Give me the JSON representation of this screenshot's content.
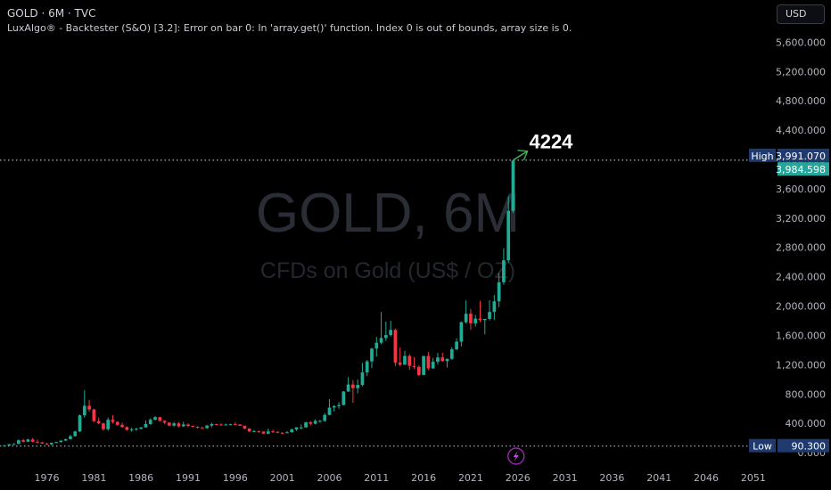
{
  "header": {
    "title": "GOLD · 6M · TVC",
    "error": "LuxAlgo® - Backtester (S&O) [3.2]: Error on bar 0: In 'array.get()' function. Index 0 is out of bounds, array size is 0.",
    "currency": "USD"
  },
  "watermark": {
    "symbol": "GOLD, 6M",
    "description": "CFDs on Gold (US$ / OZ)"
  },
  "annotation": {
    "text": "4224",
    "target_value": 4224
  },
  "price_labels": {
    "high_label": "High",
    "high_value": "3,991.070",
    "last_value": "3,984.598",
    "low_label": "Low",
    "low_value": "90.300"
  },
  "colors": {
    "up": "#22ab94",
    "down": "#f23645",
    "annotation": "#3fb950",
    "grid_dots": "#b2b5be",
    "label_blue": "#1e3a6e",
    "label_green": "#26a69a"
  },
  "events_icon": "lightning-icon",
  "chart_data": {
    "type": "candlestick",
    "title": "GOLD · 6M · TVC",
    "y_axis": {
      "ticks": [
        0,
        400,
        800,
        1200,
        1600,
        2000,
        2400,
        2800,
        3200,
        3600,
        4000,
        4400,
        4800,
        5200,
        5600
      ],
      "tick_labels": [
        "0.000",
        "400.000",
        "800.000",
        "1,200.000",
        "1,600.000",
        "2,000.000",
        "2,400.000",
        "2,800.000",
        "3,200.000",
        "3,600.000",
        "4,000.000",
        "4,400.000",
        "4,800.000",
        "5,200.000",
        "5,600.000"
      ],
      "range": [
        -120,
        5750
      ]
    },
    "x_axis": {
      "ticks": [
        1976,
        1981,
        1986,
        1991,
        1996,
        2001,
        2006,
        2011,
        2016,
        2021,
        2026,
        2031,
        2036,
        2041,
        2046,
        2051
      ],
      "range": [
        1971.5,
        2053
      ]
    },
    "high": 3991.07,
    "low": 90.3,
    "last": 3984.598,
    "candles": [
      {
        "t": 1971.5,
        "o": 90,
        "h": 105,
        "l": 88,
        "c": 100
      },
      {
        "t": 1972.0,
        "o": 100,
        "h": 120,
        "l": 95,
        "c": 115
      },
      {
        "t": 1972.5,
        "o": 115,
        "h": 130,
        "l": 110,
        "c": 120
      },
      {
        "t": 1973.0,
        "o": 120,
        "h": 180,
        "l": 115,
        "c": 170
      },
      {
        "t": 1973.5,
        "o": 170,
        "h": 190,
        "l": 140,
        "c": 150
      },
      {
        "t": 1974.0,
        "o": 150,
        "h": 190,
        "l": 145,
        "c": 180
      },
      {
        "t": 1974.5,
        "o": 180,
        "h": 200,
        "l": 140,
        "c": 150
      },
      {
        "t": 1975.0,
        "o": 150,
        "h": 180,
        "l": 130,
        "c": 140
      },
      {
        "t": 1975.5,
        "o": 140,
        "h": 150,
        "l": 120,
        "c": 125
      },
      {
        "t": 1976.0,
        "o": 125,
        "h": 135,
        "l": 105,
        "c": 115
      },
      {
        "t": 1976.5,
        "o": 115,
        "h": 140,
        "l": 100,
        "c": 135
      },
      {
        "t": 1977.0,
        "o": 135,
        "h": 150,
        "l": 130,
        "c": 145
      },
      {
        "t": 1977.5,
        "o": 145,
        "h": 170,
        "l": 140,
        "c": 165
      },
      {
        "t": 1978.0,
        "o": 165,
        "h": 190,
        "l": 160,
        "c": 185
      },
      {
        "t": 1978.5,
        "o": 185,
        "h": 245,
        "l": 180,
        "c": 225
      },
      {
        "t": 1979.0,
        "o": 225,
        "h": 300,
        "l": 220,
        "c": 290
      },
      {
        "t": 1979.5,
        "o": 290,
        "h": 520,
        "l": 280,
        "c": 510
      },
      {
        "t": 1980.0,
        "o": 510,
        "h": 850,
        "l": 480,
        "c": 640
      },
      {
        "t": 1980.5,
        "o": 640,
        "h": 720,
        "l": 560,
        "c": 590
      },
      {
        "t": 1981.0,
        "o": 590,
        "h": 600,
        "l": 420,
        "c": 430
      },
      {
        "t": 1981.5,
        "o": 430,
        "h": 480,
        "l": 390,
        "c": 400
      },
      {
        "t": 1982.0,
        "o": 400,
        "h": 410,
        "l": 300,
        "c": 320
      },
      {
        "t": 1982.5,
        "o": 320,
        "h": 480,
        "l": 300,
        "c": 450
      },
      {
        "t": 1983.0,
        "o": 450,
        "h": 510,
        "l": 400,
        "c": 420
      },
      {
        "t": 1983.5,
        "o": 420,
        "h": 430,
        "l": 370,
        "c": 380
      },
      {
        "t": 1984.0,
        "o": 380,
        "h": 410,
        "l": 340,
        "c": 350
      },
      {
        "t": 1984.5,
        "o": 350,
        "h": 360,
        "l": 300,
        "c": 310
      },
      {
        "t": 1985.0,
        "o": 310,
        "h": 340,
        "l": 285,
        "c": 320
      },
      {
        "t": 1985.5,
        "o": 320,
        "h": 340,
        "l": 300,
        "c": 325
      },
      {
        "t": 1986.0,
        "o": 325,
        "h": 350,
        "l": 320,
        "c": 345
      },
      {
        "t": 1986.5,
        "o": 345,
        "h": 440,
        "l": 340,
        "c": 390
      },
      {
        "t": 1987.0,
        "o": 390,
        "h": 470,
        "l": 380,
        "c": 450
      },
      {
        "t": 1987.5,
        "o": 450,
        "h": 500,
        "l": 440,
        "c": 485
      },
      {
        "t": 1988.0,
        "o": 485,
        "h": 490,
        "l": 420,
        "c": 435
      },
      {
        "t": 1988.5,
        "o": 435,
        "h": 440,
        "l": 390,
        "c": 410
      },
      {
        "t": 1989.0,
        "o": 410,
        "h": 415,
        "l": 360,
        "c": 370
      },
      {
        "t": 1989.5,
        "o": 370,
        "h": 420,
        "l": 355,
        "c": 400
      },
      {
        "t": 1990.0,
        "o": 400,
        "h": 420,
        "l": 345,
        "c": 360
      },
      {
        "t": 1990.5,
        "o": 360,
        "h": 420,
        "l": 350,
        "c": 385
      },
      {
        "t": 1991.0,
        "o": 385,
        "h": 400,
        "l": 350,
        "c": 365
      },
      {
        "t": 1991.5,
        "o": 365,
        "h": 370,
        "l": 345,
        "c": 355
      },
      {
        "t": 1992.0,
        "o": 355,
        "h": 360,
        "l": 330,
        "c": 340
      },
      {
        "t": 1992.5,
        "o": 340,
        "h": 355,
        "l": 330,
        "c": 335
      },
      {
        "t": 1993.0,
        "o": 335,
        "h": 380,
        "l": 325,
        "c": 370
      },
      {
        "t": 1993.5,
        "o": 370,
        "h": 410,
        "l": 345,
        "c": 390
      },
      {
        "t": 1994.0,
        "o": 390,
        "h": 395,
        "l": 370,
        "c": 385
      },
      {
        "t": 1994.5,
        "o": 385,
        "h": 400,
        "l": 370,
        "c": 380
      },
      {
        "t": 1995.0,
        "o": 380,
        "h": 395,
        "l": 370,
        "c": 385
      },
      {
        "t": 1995.5,
        "o": 385,
        "h": 395,
        "l": 375,
        "c": 388
      },
      {
        "t": 1996.0,
        "o": 388,
        "h": 415,
        "l": 380,
        "c": 385
      },
      {
        "t": 1996.5,
        "o": 385,
        "h": 390,
        "l": 365,
        "c": 368
      },
      {
        "t": 1997.0,
        "o": 368,
        "h": 370,
        "l": 320,
        "c": 330
      },
      {
        "t": 1997.5,
        "o": 330,
        "h": 335,
        "l": 280,
        "c": 290
      },
      {
        "t": 1998.0,
        "o": 290,
        "h": 310,
        "l": 280,
        "c": 295
      },
      {
        "t": 1998.5,
        "o": 295,
        "h": 300,
        "l": 270,
        "c": 288
      },
      {
        "t": 1999.0,
        "o": 288,
        "h": 290,
        "l": 255,
        "c": 260
      },
      {
        "t": 1999.5,
        "o": 260,
        "h": 330,
        "l": 252,
        "c": 290
      },
      {
        "t": 2000.0,
        "o": 290,
        "h": 315,
        "l": 270,
        "c": 285
      },
      {
        "t": 2000.5,
        "o": 285,
        "h": 290,
        "l": 265,
        "c": 272
      },
      {
        "t": 2001.0,
        "o": 272,
        "h": 280,
        "l": 255,
        "c": 270
      },
      {
        "t": 2001.5,
        "o": 270,
        "h": 295,
        "l": 265,
        "c": 278
      },
      {
        "t": 2002.0,
        "o": 278,
        "h": 330,
        "l": 275,
        "c": 318
      },
      {
        "t": 2002.5,
        "o": 318,
        "h": 350,
        "l": 300,
        "c": 345
      },
      {
        "t": 2003.0,
        "o": 345,
        "h": 385,
        "l": 320,
        "c": 345
      },
      {
        "t": 2003.5,
        "o": 345,
        "h": 420,
        "l": 340,
        "c": 415
      },
      {
        "t": 2004.0,
        "o": 415,
        "h": 430,
        "l": 375,
        "c": 395
      },
      {
        "t": 2004.5,
        "o": 395,
        "h": 455,
        "l": 385,
        "c": 435
      },
      {
        "t": 2005.0,
        "o": 435,
        "h": 445,
        "l": 410,
        "c": 435
      },
      {
        "t": 2005.5,
        "o": 435,
        "h": 540,
        "l": 420,
        "c": 515
      },
      {
        "t": 2006.0,
        "o": 515,
        "h": 730,
        "l": 510,
        "c": 615
      },
      {
        "t": 2006.5,
        "o": 615,
        "h": 650,
        "l": 560,
        "c": 635
      },
      {
        "t": 2007.0,
        "o": 635,
        "h": 690,
        "l": 600,
        "c": 650
      },
      {
        "t": 2007.5,
        "o": 650,
        "h": 840,
        "l": 645,
        "c": 835
      },
      {
        "t": 2008.0,
        "o": 835,
        "h": 1030,
        "l": 830,
        "c": 930
      },
      {
        "t": 2008.5,
        "o": 930,
        "h": 990,
        "l": 680,
        "c": 880
      },
      {
        "t": 2009.0,
        "o": 880,
        "h": 1000,
        "l": 810,
        "c": 925
      },
      {
        "t": 2009.5,
        "o": 925,
        "h": 1225,
        "l": 905,
        "c": 1095
      },
      {
        "t": 2010.0,
        "o": 1095,
        "h": 1265,
        "l": 1045,
        "c": 1245
      },
      {
        "t": 2010.5,
        "o": 1245,
        "h": 1430,
        "l": 1155,
        "c": 1420
      },
      {
        "t": 2011.0,
        "o": 1420,
        "h": 1580,
        "l": 1310,
        "c": 1500
      },
      {
        "t": 2011.5,
        "o": 1500,
        "h": 1920,
        "l": 1480,
        "c": 1565
      },
      {
        "t": 2012.0,
        "o": 1565,
        "h": 1790,
        "l": 1525,
        "c": 1605
      },
      {
        "t": 2012.5,
        "o": 1605,
        "h": 1800,
        "l": 1585,
        "c": 1675
      },
      {
        "t": 2013.0,
        "o": 1675,
        "h": 1695,
        "l": 1180,
        "c": 1230
      },
      {
        "t": 2013.5,
        "o": 1230,
        "h": 1435,
        "l": 1180,
        "c": 1200
      },
      {
        "t": 2014.0,
        "o": 1200,
        "h": 1390,
        "l": 1200,
        "c": 1320
      },
      {
        "t": 2014.5,
        "o": 1320,
        "h": 1345,
        "l": 1130,
        "c": 1185
      },
      {
        "t": 2015.0,
        "o": 1185,
        "h": 1305,
        "l": 1140,
        "c": 1170
      },
      {
        "t": 2015.5,
        "o": 1170,
        "h": 1190,
        "l": 1045,
        "c": 1060
      },
      {
        "t": 2016.0,
        "o": 1060,
        "h": 1310,
        "l": 1060,
        "c": 1320
      },
      {
        "t": 2016.5,
        "o": 1320,
        "h": 1375,
        "l": 1125,
        "c": 1150
      },
      {
        "t": 2017.0,
        "o": 1150,
        "h": 1295,
        "l": 1145,
        "c": 1240
      },
      {
        "t": 2017.5,
        "o": 1240,
        "h": 1360,
        "l": 1205,
        "c": 1300
      },
      {
        "t": 2018.0,
        "o": 1300,
        "h": 1365,
        "l": 1240,
        "c": 1250
      },
      {
        "t": 2018.5,
        "o": 1250,
        "h": 1285,
        "l": 1160,
        "c": 1280
      },
      {
        "t": 2019.0,
        "o": 1280,
        "h": 1440,
        "l": 1265,
        "c": 1410
      },
      {
        "t": 2019.5,
        "o": 1410,
        "h": 1560,
        "l": 1400,
        "c": 1515
      },
      {
        "t": 2020.0,
        "o": 1515,
        "h": 1790,
        "l": 1450,
        "c": 1780
      },
      {
        "t": 2020.5,
        "o": 1780,
        "h": 2075,
        "l": 1760,
        "c": 1895
      },
      {
        "t": 2021.0,
        "o": 1895,
        "h": 1960,
        "l": 1675,
        "c": 1765
      },
      {
        "t": 2021.5,
        "o": 1765,
        "h": 1880,
        "l": 1720,
        "c": 1830
      },
      {
        "t": 2022.0,
        "o": 1830,
        "h": 2070,
        "l": 1780,
        "c": 1810
      },
      {
        "t": 2022.5,
        "o": 1810,
        "h": 1820,
        "l": 1615,
        "c": 1825
      },
      {
        "t": 2023.0,
        "o": 1825,
        "h": 2080,
        "l": 1805,
        "c": 1920
      },
      {
        "t": 2023.5,
        "o": 1920,
        "h": 2150,
        "l": 1810,
        "c": 2065
      },
      {
        "t": 2024.0,
        "o": 2065,
        "h": 2450,
        "l": 1985,
        "c": 2325
      },
      {
        "t": 2024.5,
        "o": 2325,
        "h": 2790,
        "l": 2290,
        "c": 2625
      },
      {
        "t": 2025.0,
        "o": 2625,
        "h": 3500,
        "l": 2585,
        "c": 3300
      },
      {
        "t": 2025.5,
        "o": 3300,
        "h": 3991.07,
        "l": 3270,
        "c": 3984.598
      }
    ]
  }
}
